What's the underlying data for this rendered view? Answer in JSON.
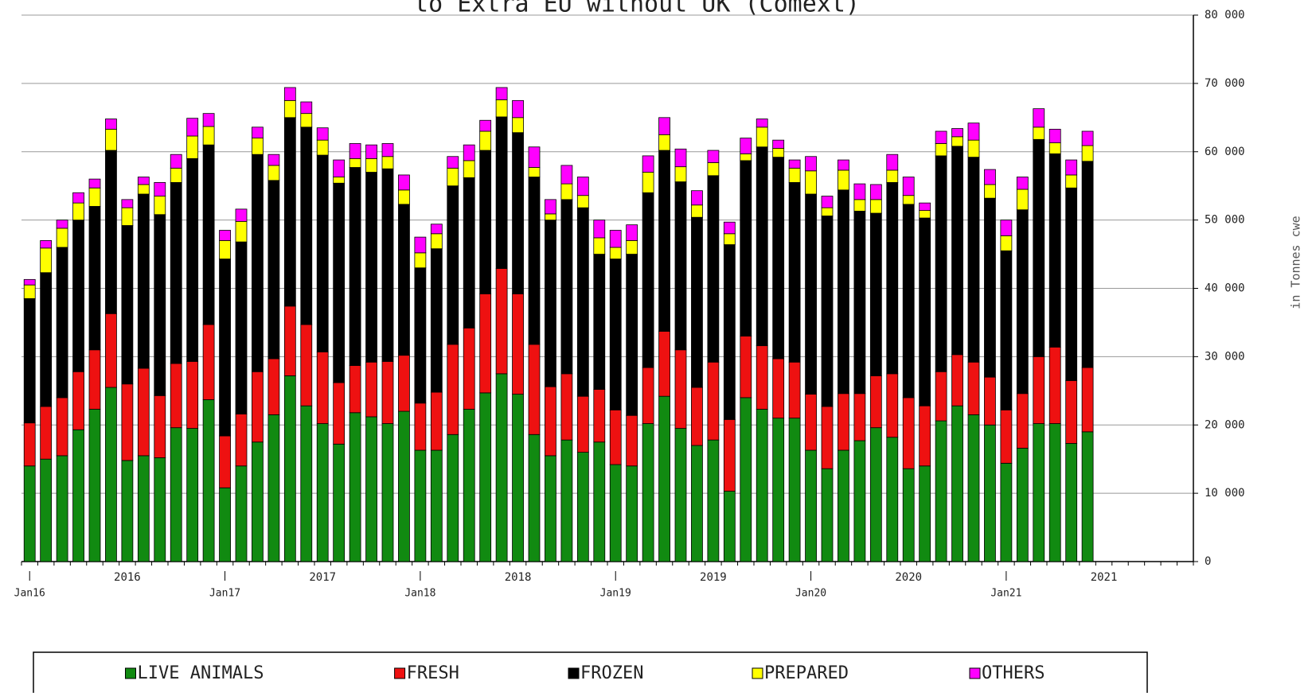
{
  "chart_data": {
    "type": "stacked_bar",
    "title": "to Extra EU without UK (Comext)",
    "y_axis_label": "in Tonnes cwe",
    "categories": [
      "Jan16",
      null,
      null,
      null,
      null,
      null,
      null,
      null,
      null,
      null,
      null,
      null,
      "Jan17",
      null,
      null,
      null,
      null,
      null,
      null,
      null,
      null,
      null,
      null,
      null,
      "Jan18",
      null,
      null,
      null,
      null,
      null,
      null,
      null,
      null,
      null,
      null,
      null,
      "Jan19",
      null,
      null,
      null,
      null,
      null,
      null,
      null,
      null,
      null,
      null,
      null,
      "Jan20",
      null,
      null,
      null,
      null,
      null,
      null,
      null,
      null,
      null,
      null,
      null,
      "Jan21",
      null,
      null,
      null,
      null,
      null
    ],
    "year_labels": [
      "2016",
      "2017",
      "2018",
      "2019",
      "2020",
      "2021"
    ],
    "ylim": [
      0,
      80000
    ],
    "yticks": [
      0,
      {
        "value": 10000,
        "label": "10 000"
      },
      {
        "value": 20000,
        "label": "20 000"
      },
      {
        "value": 30000,
        "label": "30 000"
      },
      {
        "value": 40000,
        "label": "40 000"
      },
      {
        "value": 50000,
        "label": "50 000"
      },
      {
        "value": 60000,
        "label": "60 000"
      },
      {
        "value": 70000,
        "label": "70 000"
      },
      {
        "value": 80000,
        "label": "80 000"
      }
    ],
    "grid": true,
    "legend": "bottom",
    "series": [
      {
        "name": "LIVE ANIMALS",
        "color": "#118a11",
        "values": [
          14000,
          15000,
          15500,
          19300,
          22300,
          25500,
          14800,
          15500,
          15200,
          19600,
          19500,
          23700,
          10800,
          14000,
          17500,
          21500,
          27200,
          22800,
          20200,
          17200,
          21800,
          21200,
          20200,
          22000,
          16300,
          16300,
          18600,
          22300,
          24700,
          27500,
          24500,
          18600,
          15500,
          17800,
          16000,
          17500,
          14200,
          14000,
          20200,
          24200,
          19500,
          17000,
          17800,
          10300,
          24000,
          22300,
          21000,
          21000,
          16300,
          13600,
          16300,
          17700,
          19600,
          18200,
          13600,
          14000,
          20600,
          22800,
          21500,
          20000,
          14400,
          16600,
          20200,
          20200,
          17300,
          19000
        ]
      },
      {
        "name": "FRESH",
        "color": "#ee1111",
        "values": [
          6300,
          7700,
          8500,
          8500,
          8700,
          10800,
          11200,
          12800,
          9100,
          9400,
          9800,
          11000,
          7600,
          7600,
          10300,
          8200,
          10200,
          11900,
          10500,
          9000,
          6900,
          8000,
          9100,
          8200,
          6900,
          8500,
          13200,
          11900,
          14500,
          15400,
          14700,
          13200,
          10100,
          9700,
          8200,
          7700,
          8000,
          7400,
          8200,
          9500,
          11500,
          8500,
          11400,
          10500,
          9000,
          9300,
          8700,
          8200,
          8200,
          9100,
          8300,
          6900,
          7600,
          9300,
          10400,
          8800,
          7200,
          7500,
          7700,
          7000,
          7800,
          8000,
          9800,
          11200,
          9200,
          9400
        ]
      },
      {
        "name": "FROZEN",
        "color": "#000000",
        "values": [
          18200,
          19600,
          22000,
          22200,
          21000,
          23900,
          23200,
          25500,
          26500,
          26500,
          29700,
          26300,
          25900,
          25200,
          31800,
          26100,
          27600,
          28900,
          28800,
          29200,
          29000,
          27800,
          28200,
          22100,
          19800,
          21000,
          23200,
          22000,
          21000,
          22200,
          23600,
          24500,
          24400,
          25500,
          27600,
          19800,
          22100,
          23600,
          25600,
          26500,
          24600,
          24900,
          27300,
          25600,
          25700,
          29100,
          29500,
          26300,
          29300,
          27900,
          29800,
          26700,
          23800,
          28000,
          28300,
          27500,
          31600,
          30500,
          30000,
          26200,
          23300,
          26900,
          31800,
          28300,
          28200,
          30200
        ]
      },
      {
        "name": "PREPARED",
        "color": "#ffff00",
        "values": [
          2000,
          3600,
          2800,
          2500,
          2700,
          3100,
          2600,
          1400,
          2700,
          2100,
          3300,
          2700,
          2700,
          3000,
          2400,
          2200,
          2500,
          2000,
          2200,
          900,
          1300,
          2000,
          1800,
          2100,
          2200,
          2200,
          2600,
          2500,
          2800,
          2500,
          2200,
          1400,
          900,
          2300,
          1800,
          2400,
          1700,
          2000,
          3000,
          2300,
          2200,
          1800,
          1900,
          1600,
          1000,
          2900,
          1300,
          2100,
          3400,
          1200,
          2900,
          1700,
          2000,
          1800,
          1300,
          1100,
          1800,
          1400,
          2500,
          2000,
          2200,
          3000,
          1800,
          1600,
          1900,
          2300
        ]
      },
      {
        "name": "OTHERS",
        "color": "#ff00ff",
        "values": [
          800,
          1100,
          1200,
          1500,
          1300,
          1500,
          1200,
          1100,
          2000,
          2000,
          2600,
          1900,
          1500,
          1800,
          1600,
          1600,
          1900,
          1700,
          1800,
          2500,
          2200,
          2000,
          1900,
          2200,
          2300,
          1400,
          1700,
          2300,
          1600,
          1800,
          2500,
          3000,
          2100,
          2700,
          2700,
          2600,
          2500,
          2300,
          2400,
          2500,
          2600,
          2100,
          1800,
          1700,
          2300,
          1200,
          1200,
          1200,
          2100,
          1700,
          1500,
          2300,
          2200,
          2300,
          2700,
          1100,
          1800,
          1200,
          2500,
          2200,
          2300,
          1800,
          2700,
          2000,
          2200,
          2100
        ]
      }
    ]
  }
}
